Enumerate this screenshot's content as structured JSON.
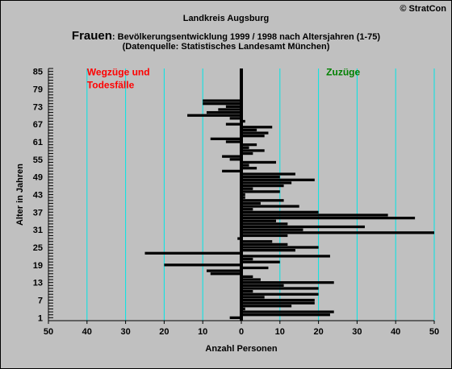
{
  "header": {
    "copyright": "© StratCon",
    "title_line1": "Landkreis Augsburg",
    "title_prefix": "Frauen",
    "title_line2": ": Bevölkerungsentwicklung 1999 / 1998  nach Altersjahren (1-75)",
    "title_line3": "(Datenquelle: Statistisches Landesamt München)"
  },
  "colors": {
    "background": "#c0c0c0",
    "gridline": "#00e5e5",
    "bar": "#000000",
    "wegzuege_label": "#ff0000",
    "zuzuege_label": "#008000"
  },
  "chart_data": {
    "type": "bar",
    "orientation": "horizontal",
    "xlabel": "Anzahl Personen",
    "ylabel": "Alter in Jahren",
    "x_tick_labels": [
      "50",
      "40",
      "30",
      "20",
      "10",
      "0",
      "10",
      "20",
      "30",
      "40",
      "50"
    ],
    "x_ticks": [
      -50,
      -40,
      -30,
      -20,
      -10,
      0,
      10,
      20,
      30,
      40,
      50
    ],
    "xlim": [
      -50,
      50
    ],
    "ylim": [
      0,
      86
    ],
    "y_ticks": [
      1,
      7,
      13,
      19,
      25,
      31,
      37,
      43,
      49,
      55,
      61,
      67,
      73,
      79,
      85
    ],
    "grid": true,
    "annotations": [
      {
        "text": "Wegzüge und",
        "side": "left"
      },
      {
        "text": "Todesfälle",
        "side": "left"
      },
      {
        "text": "Zuzüge",
        "side": "right"
      }
    ],
    "ages": [
      1,
      2,
      3,
      4,
      5,
      6,
      7,
      8,
      9,
      10,
      11,
      12,
      13,
      14,
      15,
      16,
      17,
      18,
      19,
      20,
      21,
      22,
      23,
      24,
      25,
      26,
      27,
      28,
      29,
      30,
      31,
      32,
      33,
      34,
      35,
      36,
      37,
      38,
      39,
      40,
      41,
      42,
      43,
      44,
      45,
      46,
      47,
      48,
      49,
      50,
      51,
      52,
      53,
      54,
      55,
      56,
      57,
      58,
      59,
      60,
      61,
      62,
      63,
      64,
      65,
      66,
      67,
      68,
      69,
      70,
      71,
      72,
      73,
      74,
      75
    ],
    "values": [
      -3,
      23,
      24,
      1,
      13,
      19,
      19,
      6,
      20,
      3,
      20,
      11,
      24,
      5,
      3,
      -8,
      -9,
      7,
      -20,
      10,
      3,
      23,
      -25,
      14,
      20,
      12,
      8,
      -1,
      12,
      50,
      16,
      32,
      12,
      9,
      45,
      38,
      20,
      3,
      15,
      5,
      11,
      1,
      1,
      10,
      3,
      11,
      13,
      19,
      10,
      14,
      -5,
      4,
      2,
      9,
      -3,
      -5,
      3,
      6,
      2,
      4,
      -4,
      -8,
      6,
      7,
      4,
      8,
      -4,
      1,
      -3,
      -14,
      -9,
      -6,
      -4,
      -10,
      -10
    ]
  }
}
